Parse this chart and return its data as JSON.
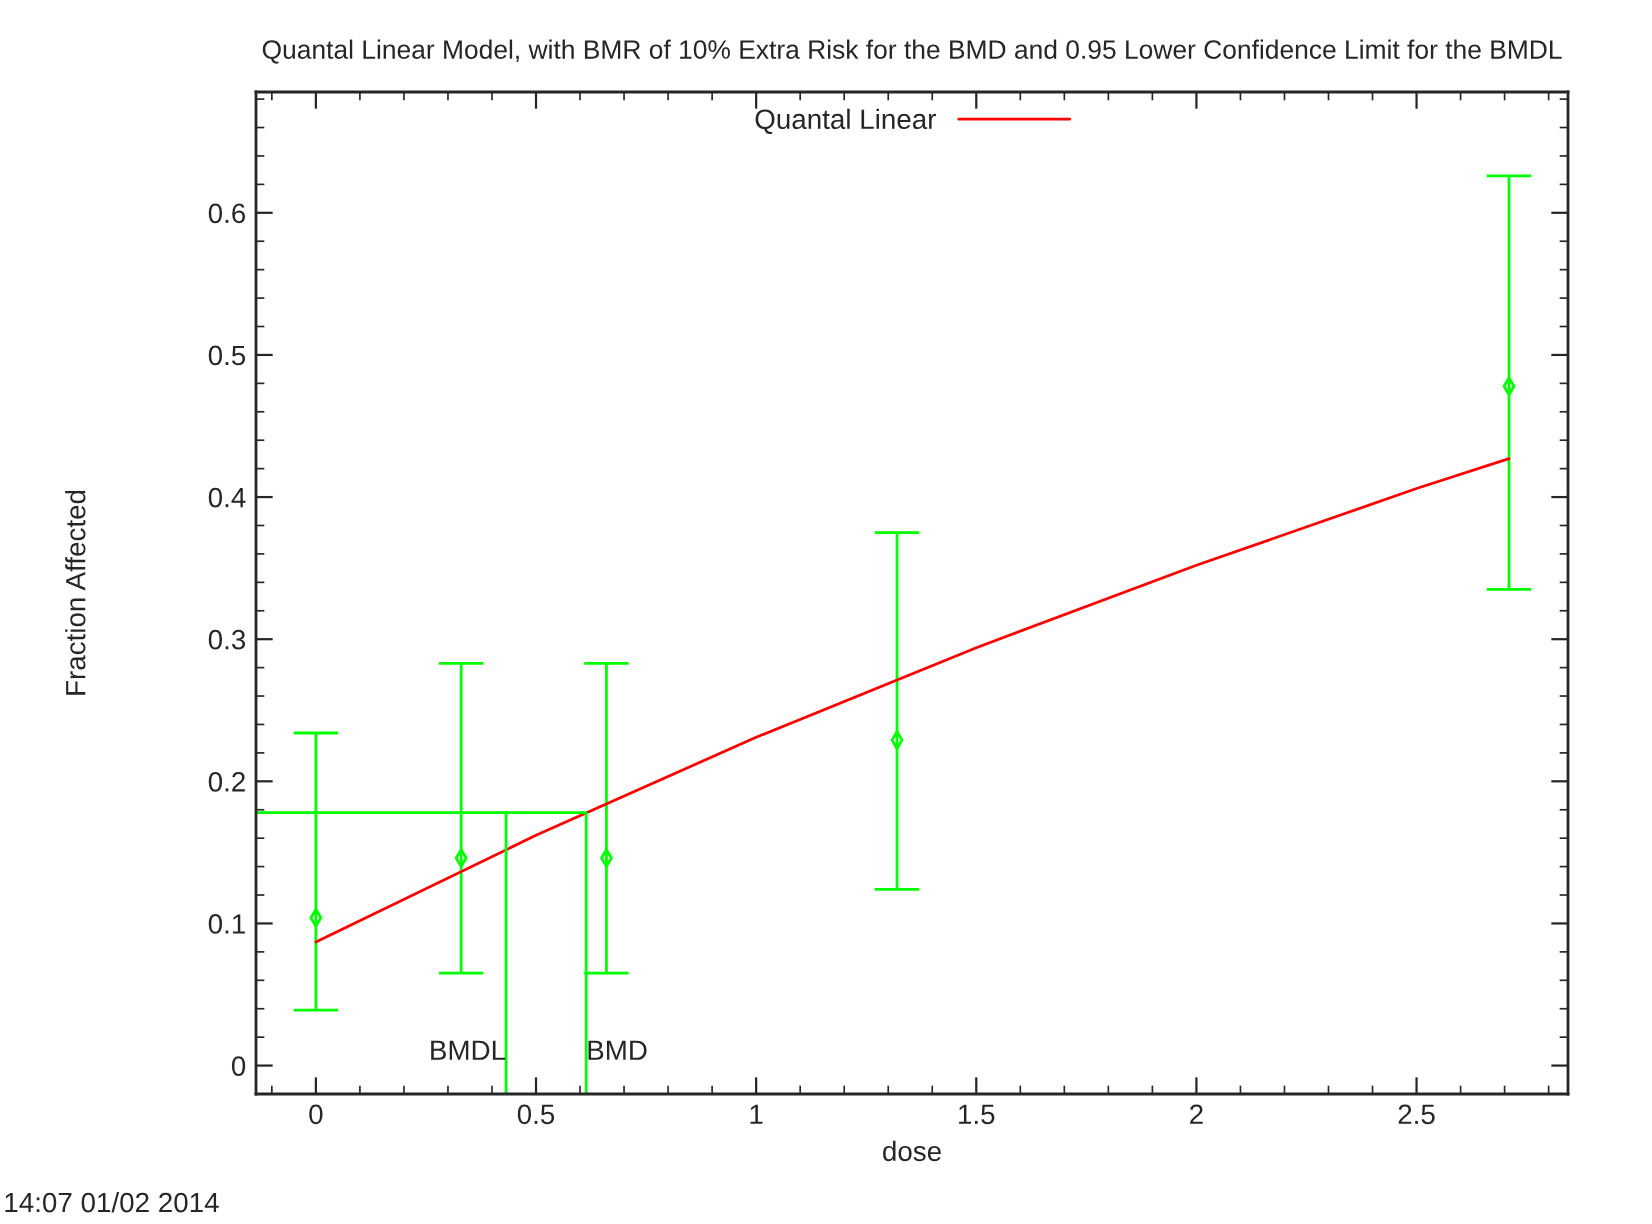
{
  "chart_data": {
    "type": "scatter",
    "title": "Quantal Linear Model, with BMR of 10% Extra Risk for the BMD and 0.95 Lower Confidence Limit for the BMDL",
    "xlabel": "dose",
    "ylabel": "Fraction Affected",
    "xlim": [
      -0.136,
      2.844
    ],
    "ylim": [
      -0.02,
      0.685
    ],
    "xticks": [
      0,
      0.5,
      1,
      1.5,
      2,
      2.5
    ],
    "yticks": [
      0,
      0.1,
      0.2,
      0.3,
      0.4,
      0.5,
      0.6
    ],
    "grid": false,
    "legend": "top",
    "series": [
      {
        "color": "#00ff00",
        "marker": "diamond",
        "x": [
          0,
          0.33,
          0.66,
          1.32,
          2.71
        ],
        "values": [
          0.104,
          0.146,
          0.146,
          0.229,
          0.478
        ],
        "errors": [
          [
            0.039,
            0.234
          ],
          [
            0.065,
            0.283
          ],
          [
            0.065,
            0.283
          ],
          [
            0.124,
            0.375
          ],
          [
            0.335,
            0.626
          ]
        ]
      },
      {
        "type": "line",
        "name": "Quantal Linear",
        "color": "#ff0000",
        "x": [
          0,
          0.5,
          1,
          1.5,
          2,
          2.5,
          2.71
        ],
        "values": [
          0.087,
          0.162,
          0.231,
          0.294,
          0.352,
          0.406,
          0.427
        ]
      },
      {
        "type": "line",
        "color": "#00ff00",
        "x": [
          -0.136,
          0.614,
          0.614
        ],
        "values": [
          0.178,
          0.178,
          -0.02
        ]
      },
      {
        "type": "line",
        "color": "#00ff00",
        "x": [
          0.432,
          0.432
        ],
        "values": [
          -0.02,
          0.178
        ]
      }
    ],
    "annotations": [
      {
        "text": "BMDL",
        "x": 0.432,
        "y": 0
      },
      {
        "text": "BMD",
        "x": 0.614,
        "y": 0
      },
      "14:07 01/02 2014"
    ]
  }
}
